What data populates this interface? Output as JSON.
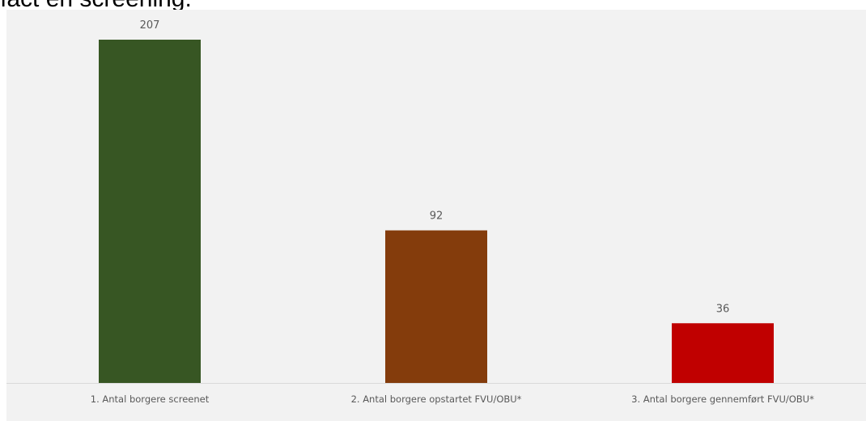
{
  "top_text": "ıact en screening.",
  "chart_data": {
    "type": "bar",
    "categories": [
      "1. Antal borgere screenet",
      "2. Antal borgere opstartet FVU/OBU*",
      "3. Antal borgere gennemført FVU/OBU*"
    ],
    "values": [
      207,
      92,
      36
    ],
    "colors": [
      "#375623",
      "#843c0c",
      "#c00000"
    ],
    "ylim": [
      0,
      207
    ],
    "grid": false,
    "legend": "none",
    "title": "",
    "xlabel": "",
    "ylabel": ""
  }
}
